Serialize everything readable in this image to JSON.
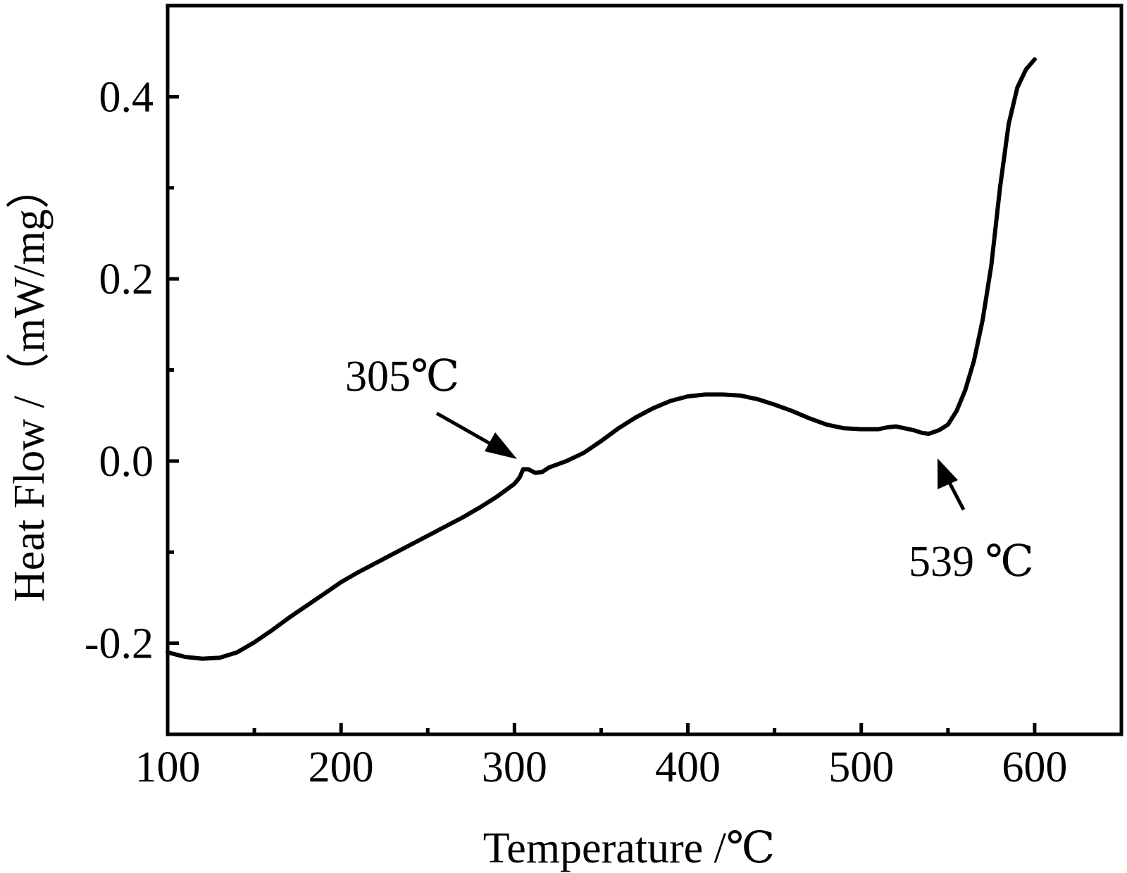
{
  "chart_data": {
    "type": "line",
    "xlabel": "Temperature /℃",
    "ylabel": "Heat Flow /（mW/mg）",
    "xlim": [
      100,
      650
    ],
    "ylim": [
      -0.3,
      0.5
    ],
    "x_ticks": [
      100,
      200,
      300,
      400,
      500,
      600
    ],
    "x_tick_labels": [
      "100",
      "200",
      "300",
      "400",
      "500",
      "600"
    ],
    "x_minor_ticks": [
      150,
      250,
      350,
      450,
      550
    ],
    "y_ticks": [
      -0.2,
      0.0,
      0.2,
      0.4
    ],
    "y_tick_labels": [
      "-0.2",
      "0.0",
      "0.2",
      "0.4"
    ],
    "y_minor_ticks": [
      -0.1,
      0.1,
      0.3
    ],
    "grid": false,
    "series": [
      {
        "color": "#000000",
        "x": [
          100,
          110,
          120,
          130,
          140,
          150,
          160,
          170,
          180,
          190,
          200,
          210,
          220,
          230,
          240,
          250,
          260,
          270,
          280,
          290,
          300,
          303,
          305,
          308,
          312,
          316,
          320,
          330,
          340,
          350,
          360,
          370,
          380,
          390,
          400,
          410,
          420,
          430,
          440,
          450,
          460,
          470,
          480,
          490,
          500,
          505,
          510,
          515,
          520,
          525,
          530,
          535,
          539,
          545,
          550,
          555,
          560,
          565,
          570,
          575,
          580,
          585,
          590,
          595,
          600
        ],
        "y": [
          -0.21,
          -0.215,
          -0.217,
          -0.216,
          -0.21,
          -0.199,
          -0.186,
          -0.172,
          -0.159,
          -0.146,
          -0.133,
          -0.122,
          -0.112,
          -0.102,
          -0.092,
          -0.082,
          -0.072,
          -0.062,
          -0.051,
          -0.039,
          -0.025,
          -0.018,
          -0.009,
          -0.009,
          -0.013,
          -0.012,
          -0.007,
          0.0,
          0.009,
          0.022,
          0.036,
          0.048,
          0.058,
          0.066,
          0.071,
          0.073,
          0.073,
          0.072,
          0.068,
          0.062,
          0.055,
          0.047,
          0.04,
          0.036,
          0.035,
          0.035,
          0.035,
          0.037,
          0.038,
          0.036,
          0.034,
          0.031,
          0.03,
          0.034,
          0.04,
          0.055,
          0.078,
          0.11,
          0.155,
          0.215,
          0.3,
          0.37,
          0.41,
          0.43,
          0.441
        ]
      }
    ],
    "annotations": [
      {
        "text": "305℃",
        "x": 305,
        "y": -0.009
      },
      {
        "text": "539 ℃",
        "x": 539,
        "y": 0.03
      }
    ]
  }
}
